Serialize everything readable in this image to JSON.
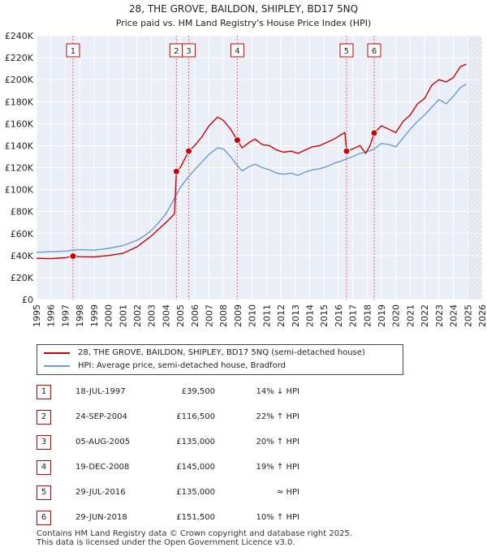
{
  "chart_data": {
    "type": "line",
    "title": "28, THE GROVE, BAILDON, SHIPLEY, BD17 5NQ",
    "subtitle": "Price paid vs. HM Land Registry's House Price Index (HPI)",
    "xlim": [
      1995,
      2026
    ],
    "ylim": [
      0,
      240000
    ],
    "x_ticks": [
      "1995",
      "1996",
      "1997",
      "1998",
      "1999",
      "2000",
      "2001",
      "2002",
      "2003",
      "2004",
      "2005",
      "2006",
      "2007",
      "2008",
      "2009",
      "2010",
      "2011",
      "2012",
      "2013",
      "2014",
      "2015",
      "2016",
      "2017",
      "2018",
      "2019",
      "2020",
      "2021",
      "2022",
      "2023",
      "2024",
      "2025",
      "2026"
    ],
    "y_ticks": [
      {
        "value": 0,
        "label": "£0"
      },
      {
        "value": 20000,
        "label": "£20K"
      },
      {
        "value": 40000,
        "label": "£40K"
      },
      {
        "value": 60000,
        "label": "£60K"
      },
      {
        "value": 80000,
        "label": "£80K"
      },
      {
        "value": 100000,
        "label": "£100K"
      },
      {
        "value": 120000,
        "label": "£120K"
      },
      {
        "value": 140000,
        "label": "£140K"
      },
      {
        "value": 160000,
        "label": "£160K"
      },
      {
        "value": 180000,
        "label": "£180K"
      },
      {
        "value": 200000,
        "label": "£200K"
      },
      {
        "value": 220000,
        "label": "£220K"
      },
      {
        "value": 240000,
        "label": "£240K"
      }
    ],
    "grid": true,
    "future_hatch_from": 2025.0,
    "series": [
      {
        "name": "28, THE GROVE, BAILDON, SHIPLEY, BD17 5NQ (semi-detached house)",
        "color": "#cc0000",
        "points": [
          [
            1995.0,
            37500
          ],
          [
            1996.0,
            37200
          ],
          [
            1997.0,
            38000
          ],
          [
            1997.54,
            39500
          ],
          [
            1998.0,
            39000
          ],
          [
            1999.0,
            38800
          ],
          [
            2000.0,
            40000
          ],
          [
            2001.0,
            42000
          ],
          [
            2002.0,
            48000
          ],
          [
            2002.5,
            53000
          ],
          [
            2003.0,
            58000
          ],
          [
            2003.5,
            64000
          ],
          [
            2004.0,
            70000
          ],
          [
            2004.6,
            78000
          ],
          [
            2004.73,
            116500
          ],
          [
            2005.0,
            120000
          ],
          [
            2005.59,
            135000
          ],
          [
            2006.0,
            140000
          ],
          [
            2006.5,
            148000
          ],
          [
            2007.0,
            158000
          ],
          [
            2007.6,
            166000
          ],
          [
            2008.0,
            163000
          ],
          [
            2008.5,
            155000
          ],
          [
            2008.97,
            145000
          ],
          [
            2009.3,
            138000
          ],
          [
            2009.8,
            143000
          ],
          [
            2010.2,
            146000
          ],
          [
            2010.7,
            141000
          ],
          [
            2011.2,
            140000
          ],
          [
            2011.7,
            136000
          ],
          [
            2012.2,
            134000
          ],
          [
            2012.7,
            135000
          ],
          [
            2013.2,
            133000
          ],
          [
            2013.7,
            136000
          ],
          [
            2014.2,
            139000
          ],
          [
            2014.7,
            140000
          ],
          [
            2015.2,
            143000
          ],
          [
            2015.7,
            146000
          ],
          [
            2016.2,
            150000
          ],
          [
            2016.45,
            152000
          ],
          [
            2016.57,
            135000
          ],
          [
            2017.0,
            137000
          ],
          [
            2017.5,
            140000
          ],
          [
            2017.9,
            133000
          ],
          [
            2018.2,
            140000
          ],
          [
            2018.49,
            151500
          ],
          [
            2019.0,
            158000
          ],
          [
            2019.5,
            155000
          ],
          [
            2020.0,
            152000
          ],
          [
            2020.5,
            162000
          ],
          [
            2021.0,
            168000
          ],
          [
            2021.5,
            178000
          ],
          [
            2022.0,
            183000
          ],
          [
            2022.5,
            195000
          ],
          [
            2023.0,
            200000
          ],
          [
            2023.5,
            198000
          ],
          [
            2024.0,
            202000
          ],
          [
            2024.5,
            212000
          ],
          [
            2024.9,
            214000
          ]
        ]
      },
      {
        "name": "HPI: Average price, semi-detached house, Bradford",
        "color": "#6a9bd1",
        "points": [
          [
            1995.0,
            43000
          ],
          [
            1996.0,
            43500
          ],
          [
            1997.0,
            44000
          ],
          [
            1997.54,
            45000
          ],
          [
            1998.0,
            45500
          ],
          [
            1999.0,
            45000
          ],
          [
            2000.0,
            46500
          ],
          [
            2001.0,
            49000
          ],
          [
            2002.0,
            54000
          ],
          [
            2002.5,
            58000
          ],
          [
            2003.0,
            63000
          ],
          [
            2003.5,
            70000
          ],
          [
            2004.0,
            78000
          ],
          [
            2004.73,
            95000
          ],
          [
            2005.0,
            102000
          ],
          [
            2005.59,
            112000
          ],
          [
            2006.0,
            118000
          ],
          [
            2006.5,
            125000
          ],
          [
            2007.0,
            132000
          ],
          [
            2007.6,
            138000
          ],
          [
            2008.0,
            137000
          ],
          [
            2008.5,
            130000
          ],
          [
            2008.97,
            122000
          ],
          [
            2009.3,
            117000
          ],
          [
            2009.8,
            121000
          ],
          [
            2010.2,
            123000
          ],
          [
            2010.7,
            120000
          ],
          [
            2011.2,
            118000
          ],
          [
            2011.7,
            115000
          ],
          [
            2012.2,
            114000
          ],
          [
            2012.7,
            115000
          ],
          [
            2013.2,
            113000
          ],
          [
            2013.7,
            116000
          ],
          [
            2014.2,
            118000
          ],
          [
            2014.7,
            119000
          ],
          [
            2015.2,
            121000
          ],
          [
            2015.7,
            124000
          ],
          [
            2016.2,
            126000
          ],
          [
            2016.57,
            128000
          ],
          [
            2017.0,
            130000
          ],
          [
            2017.5,
            133000
          ],
          [
            2017.9,
            134000
          ],
          [
            2018.49,
            137000
          ],
          [
            2019.0,
            142000
          ],
          [
            2019.5,
            141000
          ],
          [
            2020.0,
            139000
          ],
          [
            2020.5,
            147000
          ],
          [
            2021.0,
            155000
          ],
          [
            2021.5,
            162000
          ],
          [
            2022.0,
            168000
          ],
          [
            2022.5,
            175000
          ],
          [
            2023.0,
            182000
          ],
          [
            2023.5,
            178000
          ],
          [
            2024.0,
            185000
          ],
          [
            2024.5,
            193000
          ],
          [
            2024.9,
            196000
          ]
        ]
      }
    ],
    "sales": [
      {
        "num": "1",
        "x": 1997.54,
        "y": 39500,
        "date": "18-JUL-1997",
        "price": "£39,500",
        "hpi": "14% ↓ HPI"
      },
      {
        "num": "2",
        "x": 2004.73,
        "y": 116500,
        "date": "24-SEP-2004",
        "price": "£116,500",
        "hpi": "22% ↑ HPI"
      },
      {
        "num": "3",
        "x": 2005.59,
        "y": 135000,
        "date": "05-AUG-2005",
        "price": "£135,000",
        "hpi": "20% ↑ HPI"
      },
      {
        "num": "4",
        "x": 2008.97,
        "y": 145000,
        "date": "19-DEC-2008",
        "price": "£145,000",
        "hpi": "19% ↑ HPI"
      },
      {
        "num": "5",
        "x": 2016.57,
        "y": 135000,
        "date": "29-JUL-2016",
        "price": "£135,000",
        "hpi": "≈ HPI"
      },
      {
        "num": "6",
        "x": 2018.49,
        "y": 151500,
        "date": "29-JUN-2018",
        "price": "£151,500",
        "hpi": "10% ↑ HPI"
      }
    ]
  },
  "legend": {
    "property": "28, THE GROVE, BAILDON, SHIPLEY, BD17 5NQ (semi-detached house)",
    "hpi": "HPI: Average price, semi-detached house, Bradford"
  },
  "footer": {
    "line1": "Contains HM Land Registry data © Crown copyright and database right 2025.",
    "line2": "This data is licensed under the Open Government Licence v3.0."
  }
}
